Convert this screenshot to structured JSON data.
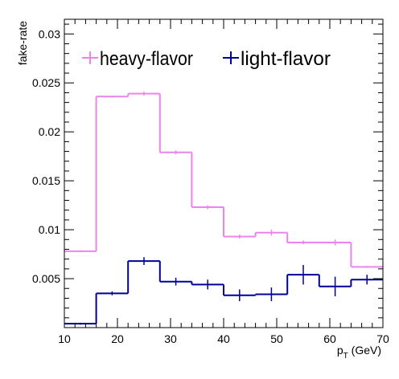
{
  "chart_data": {
    "type": "line",
    "style": "step-histogram-with-error-bars",
    "xlabel": "p",
    "xlabel_subscript": "T",
    "xlabel_unit": " (GeV)",
    "ylabel": "fake-rate",
    "xlim": [
      10,
      70
    ],
    "ylim": [
      0,
      0.0315
    ],
    "x_ticks": [
      "10",
      "20",
      "30",
      "40",
      "50",
      "60",
      "70"
    ],
    "y_ticks": [
      "0.005",
      "0.01",
      "0.015",
      "0.02",
      "0.025",
      "0.03"
    ],
    "x_tick_values": [
      10,
      20,
      30,
      40,
      50,
      60,
      70
    ],
    "y_tick_values": [
      0.005,
      0.01,
      0.015,
      0.02,
      0.025,
      0.03
    ],
    "grid": false,
    "legend_position": "top-left",
    "bin_edges": [
      10,
      16,
      22,
      28,
      34,
      40,
      46,
      52,
      58,
      64,
      70
    ],
    "series": [
      {
        "name": "heavy-flavor",
        "color": "#ee82ee",
        "values": [
          0.0078,
          0.0236,
          0.0239,
          0.0179,
          0.0123,
          0.0093,
          0.0097,
          0.0087,
          0.0087,
          0.0062
        ],
        "errors": [
          0.0001,
          0.0001,
          0.0002,
          0.0002,
          0.0002,
          0.0002,
          0.0003,
          0.0002,
          0.0003,
          0.0001
        ]
      },
      {
        "name": "light-flavor",
        "color": "#000099",
        "values": [
          0.0004,
          0.0035,
          0.0068,
          0.0047,
          0.0044,
          0.0033,
          0.0034,
          0.0054,
          0.0042,
          0.0049
        ],
        "errors": [
          0.0001,
          0.0002,
          0.0004,
          0.0004,
          0.0005,
          0.0006,
          0.0007,
          0.001,
          0.001,
          0.0005
        ]
      }
    ]
  }
}
